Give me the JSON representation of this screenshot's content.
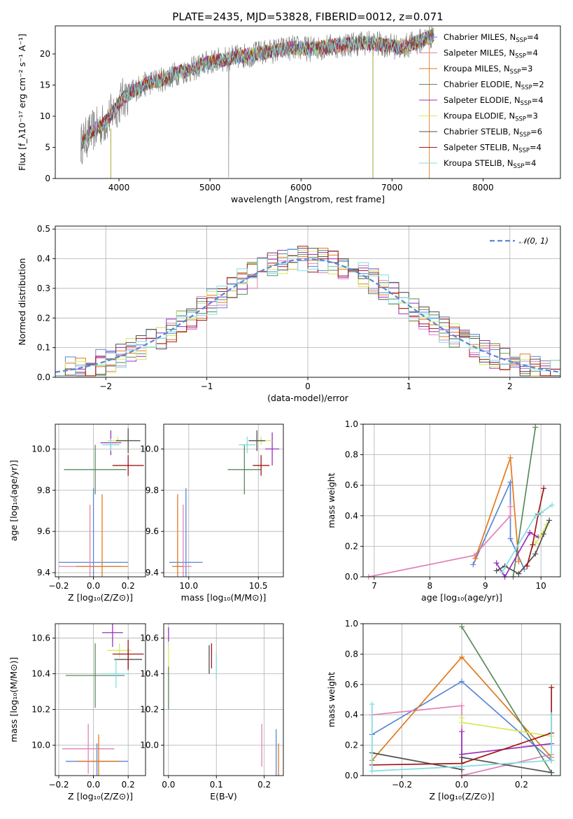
{
  "title": "PLATE=2435, MJD=53828, FIBERID=0012, z=0.071",
  "colors": {
    "Chabrier MILES": "#5b86d6",
    "Salpeter MILES": "#e082b8",
    "Kroupa MILES": "#e07b1e",
    "Chabrier ELODIE": "#5a8a60",
    "Salpeter ELODIE": "#9a2fbf",
    "Kroupa ELODIE": "#d6ea5c",
    "Chabrier STELIB": "#505050",
    "Salpeter STELIB": "#a01818",
    "Kroupa STELIB": "#82dde0"
  },
  "chart_data": [
    {
      "type": "line",
      "id": "spectrum",
      "title": "PLATE=2435, MJD=53828, FIBERID=0012, z=0.071",
      "xlabel": "wavelength [Angstrom, rest frame]",
      "ylabel": "Flux [f_λ10⁻¹⁷ erg cm⁻² s⁻¹ A⁻¹]",
      "xlim": [
        3300,
        8850
      ],
      "ylim": [
        0,
        24.5
      ],
      "xticks": [
        4000,
        5000,
        6000,
        7000,
        8000
      ],
      "yticks": [
        0,
        5,
        10,
        15,
        20
      ],
      "legend": "upper right",
      "legend_entries": [
        {
          "label": "Chabrier MILES, N",
          "sub": "SSP",
          "val": "=4",
          "color": "#5b86d6"
        },
        {
          "label": "Salpeter MILES, N",
          "sub": "SSP",
          "val": "=4",
          "color": "#e082b8"
        },
        {
          "label": "Kroupa MILES, N",
          "sub": "SSP",
          "val": "=3",
          "color": "#e07b1e"
        },
        {
          "label": "Chabrier ELODIE, N",
          "sub": "SSP",
          "val": "=2",
          "color": "#5a8a60"
        },
        {
          "label": "Salpeter ELODIE, N",
          "sub": "SSP",
          "val": "=4",
          "color": "#9a2fbf"
        },
        {
          "label": "Kroupa ELODIE, N",
          "sub": "SSP",
          "val": "=3",
          "color": "#d6ea5c"
        },
        {
          "label": "Chabrier STELIB, N",
          "sub": "SSP",
          "val": "=6",
          "color": "#505050"
        },
        {
          "label": "Salpeter STELIB, N",
          "sub": "SSP",
          "val": "=4",
          "color": "#a01818"
        },
        {
          "label": "Kroupa STELIB, N",
          "sub": "SSP",
          "val": "=4",
          "color": "#82dde0"
        }
      ],
      "data_x": [
        3580,
        3700,
        3850,
        3950,
        4050,
        4200,
        4350,
        4500,
        4650,
        4800,
        4950,
        5100,
        5300,
        5500,
        5700,
        5900,
        6100,
        6300,
        6500,
        6700,
        6900,
        7100,
        7300,
        7450
      ],
      "data_y": [
        5.5,
        7.5,
        9.0,
        11.0,
        13.0,
        14.5,
        15.5,
        16.0,
        17.0,
        17.5,
        18.5,
        19.0,
        19.5,
        20.0,
        20.5,
        21.0,
        20.8,
        21.2,
        21.5,
        21.8,
        21.5,
        21.0,
        22.0,
        23.0
      ]
    },
    {
      "type": "line",
      "id": "residuals",
      "xlabel": "(data-model)/error",
      "ylabel": "Normed distribution",
      "xlim": [
        -2.5,
        2.5
      ],
      "ylim": [
        0,
        0.51
      ],
      "xticks": [
        -2,
        -1,
        0,
        1,
        2
      ],
      "yticks": [
        0.0,
        0.1,
        0.2,
        0.3,
        0.4,
        0.5
      ],
      "grid": true,
      "legend": "upper right",
      "legend_label": "𝒩(0, 1)",
      "bin_width": 0.1,
      "gaussian": {
        "mu": 0,
        "sigma": 1
      }
    },
    {
      "type": "scatter",
      "id": "age-vs-Z",
      "xlabel": "Z [log₁₀(Z/Z⊙)]",
      "ylabel": "age  [log₁₀(age/yr)]",
      "xlim": [
        -0.22,
        0.3
      ],
      "ylim": [
        9.38,
        10.12
      ],
      "xticks": [
        -0.2,
        0.0,
        0.2
      ],
      "yticks": [
        9.4,
        9.6,
        9.8,
        10.0
      ],
      "grid": true,
      "points": [
        {
          "model": "Chabrier MILES",
          "x": 0.0,
          "y": 9.45,
          "xerr": 0.2,
          "yerr": 0.36
        },
        {
          "model": "Salpeter MILES",
          "x": -0.02,
          "y": 9.43,
          "xerr": 0.18,
          "yerr": 0.3
        },
        {
          "model": "Kroupa MILES",
          "x": 0.05,
          "y": 9.43,
          "xerr": 0.15,
          "yerr": 0.35
        },
        {
          "model": "Chabrier ELODIE",
          "x": 0.01,
          "y": 9.9,
          "xerr": 0.18,
          "yerr": 0.12
        },
        {
          "model": "Salpeter ELODIE",
          "x": 0.1,
          "y": 10.03,
          "xerr": 0.06,
          "yerr": 0.06
        },
        {
          "model": "Kroupa ELODIE",
          "x": 0.14,
          "y": 10.04,
          "xerr": 0.06,
          "yerr": 0.02
        },
        {
          "model": "Chabrier STELIB",
          "x": 0.2,
          "y": 10.04,
          "xerr": 0.07,
          "yerr": 0.06
        },
        {
          "model": "Salpeter STELIB",
          "x": 0.2,
          "y": 9.92,
          "xerr": 0.09,
          "yerr": 0.05
        },
        {
          "model": "Kroupa STELIB",
          "x": 0.1,
          "y": 10.02,
          "xerr": 0.05,
          "yerr": 0.03
        }
      ]
    },
    {
      "type": "scatter",
      "id": "age-vs-mass",
      "xlabel": "mass [log₁₀(M/M⊙)]",
      "ylabel": "",
      "xlim": [
        9.82,
        10.68
      ],
      "ylim": [
        9.38,
        10.12
      ],
      "xticks": [
        10.0,
        10.5
      ],
      "yticks": [
        9.4,
        9.6,
        9.8,
        10.0
      ],
      "grid": true,
      "points": [
        {
          "model": "Chabrier MILES",
          "x": 9.98,
          "y": 9.45,
          "xerr": 0.12,
          "yerr": 0.36
        },
        {
          "model": "Salpeter MILES",
          "x": 9.96,
          "y": 9.43,
          "xerr": 0.06,
          "yerr": 0.3
        },
        {
          "model": "Kroupa MILES",
          "x": 9.92,
          "y": 9.43,
          "xerr": 0.04,
          "yerr": 0.35
        },
        {
          "model": "Chabrier ELODIE",
          "x": 10.4,
          "y": 9.9,
          "xerr": 0.12,
          "yerr": 0.12
        },
        {
          "model": "Salpeter ELODIE",
          "x": 10.6,
          "y": 10.0,
          "xerr": 0.05,
          "yerr": 0.08
        },
        {
          "model": "Kroupa ELODIE",
          "x": 10.52,
          "y": 10.04,
          "xerr": 0.08,
          "yerr": 0.02
        },
        {
          "model": "Chabrier STELIB",
          "x": 10.49,
          "y": 10.04,
          "xerr": 0.06,
          "yerr": 0.05
        },
        {
          "model": "Salpeter STELIB",
          "x": 10.52,
          "y": 9.92,
          "xerr": 0.06,
          "yerr": 0.05
        },
        {
          "model": "Kroupa STELIB",
          "x": 10.42,
          "y": 10.02,
          "xerr": 0.06,
          "yerr": 0.04
        }
      ]
    },
    {
      "type": "line",
      "id": "mass-weight-vs-age",
      "xlabel": "age  [log₁₀(age/yr)]",
      "ylabel": "mass weight",
      "xlim": [
        6.8,
        10.35
      ],
      "ylim": [
        0,
        1.0
      ],
      "xticks": [
        7,
        8,
        9,
        10
      ],
      "yticks": [
        0.0,
        0.2,
        0.4,
        0.6,
        0.8,
        1.0
      ],
      "grid": true,
      "series": [
        {
          "model": "Chabrier MILES",
          "x": [
            8.78,
            9.45,
            9.45,
            9.7
          ],
          "y": [
            0.08,
            0.62,
            0.25,
            0.05
          ]
        },
        {
          "model": "Salpeter MILES",
          "x": [
            6.9,
            8.8,
            9.45,
            9.45
          ],
          "y": [
            0.0,
            0.14,
            0.4,
            0.46
          ]
        },
        {
          "model": "Kroupa MILES",
          "x": [
            8.82,
            9.45,
            9.6
          ],
          "y": [
            0.12,
            0.78,
            0.1
          ]
        },
        {
          "model": "Chabrier ELODIE",
          "x": [
            9.5,
            9.9
          ],
          "y": [
            0.0,
            0.98
          ]
        },
        {
          "model": "Salpeter ELODIE",
          "x": [
            9.2,
            9.35,
            9.8,
            9.95
          ],
          "y": [
            0.09,
            0.0,
            0.29,
            0.26
          ]
        },
        {
          "model": "Kroupa ELODIE",
          "x": [
            9.9,
            10.0,
            10.1
          ],
          "y": [
            0.22,
            0.27,
            0.34
          ]
        },
        {
          "model": "Chabrier STELIB",
          "x": [
            9.2,
            9.35,
            9.6,
            9.9,
            10.05,
            10.15
          ],
          "y": [
            0.04,
            0.07,
            0.02,
            0.15,
            0.28,
            0.37
          ]
        },
        {
          "model": "Salpeter STELIB",
          "x": [
            9.75,
            9.85,
            9.95,
            10.05
          ],
          "y": [
            0.07,
            0.21,
            0.41,
            0.58
          ]
        },
        {
          "model": "Kroupa STELIB",
          "x": [
            9.3,
            9.9,
            10.0,
            10.2
          ],
          "y": [
            0.03,
            0.4,
            0.42,
            0.47
          ]
        }
      ]
    },
    {
      "type": "scatter",
      "id": "mass-vs-Z",
      "xlabel": "Z [log₁₀(Z/Z⊙)]",
      "ylabel": "mass [log₁₀(M/M⊙)]",
      "xlim": [
        -0.22,
        0.3
      ],
      "ylim": [
        9.83,
        10.68
      ],
      "xticks": [
        -0.2,
        0.0,
        0.2
      ],
      "yticks": [
        10.0,
        10.2,
        10.4,
        10.6
      ],
      "grid": true,
      "points": [
        {
          "model": "Chabrier MILES",
          "x": 0.02,
          "y": 9.91,
          "xerr": 0.18,
          "yerr": 0.1
        },
        {
          "model": "Salpeter MILES",
          "x": -0.03,
          "y": 9.98,
          "xerr": 0.15,
          "yerr": 0.14
        },
        {
          "model": "Kroupa MILES",
          "x": 0.03,
          "y": 9.91,
          "xerr": 0.12,
          "yerr": 0.15
        },
        {
          "model": "Chabrier ELODIE",
          "x": 0.01,
          "y": 10.39,
          "xerr": 0.17,
          "yerr": 0.18
        },
        {
          "model": "Salpeter ELODIE",
          "x": 0.11,
          "y": 10.63,
          "xerr": 0.06,
          "yerr": 0.08
        },
        {
          "model": "Kroupa ELODIE",
          "x": 0.15,
          "y": 10.53,
          "xerr": 0.07,
          "yerr": 0.04
        },
        {
          "model": "Chabrier STELIB",
          "x": 0.2,
          "y": 10.48,
          "xerr": 0.08,
          "yerr": 0.06
        },
        {
          "model": "Salpeter STELIB",
          "x": 0.2,
          "y": 10.51,
          "xerr": 0.09,
          "yerr": 0.08
        },
        {
          "model": "Kroupa STELIB",
          "x": 0.13,
          "y": 10.4,
          "xerr": 0.08,
          "yerr": 0.08
        }
      ]
    },
    {
      "type": "scatter",
      "id": "mass-vs-ebv",
      "xlabel": "E(B-V)",
      "ylabel": "",
      "xlim": [
        -0.01,
        0.24
      ],
      "ylim": [
        9.83,
        10.68
      ],
      "xticks": [
        0.0,
        0.1,
        0.2
      ],
      "yticks": [
        10.0,
        10.2,
        10.4,
        10.6
      ],
      "grid": true,
      "points": [
        {
          "model": "Chabrier MILES",
          "x": 0.225,
          "y": 9.95,
          "xerr": 0,
          "yerr": 0.14
        },
        {
          "model": "Salpeter MILES",
          "x": 0.195,
          "y": 10.0,
          "xerr": 0,
          "yerr": 0.12
        },
        {
          "model": "Kroupa MILES",
          "x": 0.23,
          "y": 9.91,
          "xerr": 0,
          "yerr": 0.1
        },
        {
          "model": "Chabrier ELODIE",
          "x": 0.0,
          "y": 10.32,
          "xerr": 0,
          "yerr": 0.12
        },
        {
          "model": "Salpeter ELODIE",
          "x": 0.0,
          "y": 10.62,
          "xerr": 0,
          "yerr": 0.04
        },
        {
          "model": "Kroupa ELODIE",
          "x": 0.0,
          "y": 10.5,
          "xerr": 0,
          "yerr": 0.06
        },
        {
          "model": "Chabrier STELIB",
          "x": 0.085,
          "y": 10.48,
          "xerr": 0,
          "yerr": 0.08
        },
        {
          "model": "Salpeter STELIB",
          "x": 0.09,
          "y": 10.5,
          "xerr": 0,
          "yerr": 0.07
        },
        {
          "model": "Kroupa STELIB",
          "x": 0.1,
          "y": 10.44,
          "xerr": 0,
          "yerr": 0.07
        }
      ]
    },
    {
      "type": "line",
      "id": "mass-weight-vs-Z",
      "xlabel": "Z [log₁₀(Z/Z⊙)]",
      "ylabel": "mass weight",
      "xlim": [
        -0.33,
        0.33
      ],
      "ylim": [
        0,
        1.0
      ],
      "xticks": [
        -0.2,
        0.0,
        0.2
      ],
      "yticks": [
        0.0,
        0.2,
        0.4,
        0.6,
        0.8,
        1.0
      ],
      "grid": true,
      "series": [
        {
          "model": "Chabrier MILES",
          "x": [
            -0.3,
            0.0,
            0.3
          ],
          "y": [
            0.27,
            0.62,
            0.1
          ]
        },
        {
          "model": "Salpeter MILES",
          "x": [
            -0.3,
            0.0,
            0.0,
            0.3
          ],
          "y": [
            0.4,
            0.46,
            0.0,
            0.14
          ]
        },
        {
          "model": "Kroupa MILES",
          "x": [
            -0.3,
            0.0,
            0.3
          ],
          "y": [
            0.1,
            0.78,
            0.12
          ]
        },
        {
          "model": "Chabrier ELODIE",
          "x": [
            0.0,
            0.3
          ],
          "y": [
            0.98,
            0.02
          ]
        },
        {
          "model": "Salpeter ELODIE",
          "x": [
            0.0,
            0.0,
            0.3
          ],
          "y": [
            0.29,
            0.14,
            0.21
          ]
        },
        {
          "model": "Kroupa ELODIE",
          "x": [
            0.0,
            0.0,
            0.3
          ],
          "y": [
            0.38,
            0.35,
            0.26
          ]
        },
        {
          "model": "Chabrier STELIB",
          "x": [
            -0.3,
            0.0,
            0.0,
            0.3
          ],
          "y": [
            0.15,
            0.04,
            0.12,
            0.02
          ]
        },
        {
          "model": "Salpeter STELIB",
          "x": [
            -0.3,
            0.0,
            0.3,
            0.3
          ],
          "y": [
            0.07,
            0.08,
            0.28,
            0.58
          ]
        },
        {
          "model": "Kroupa STELIB",
          "x": [
            -0.3,
            -0.3,
            0.0,
            0.3,
            0.3
          ],
          "y": [
            0.47,
            0.03,
            0.06,
            0.1,
            0.4
          ]
        }
      ]
    }
  ]
}
